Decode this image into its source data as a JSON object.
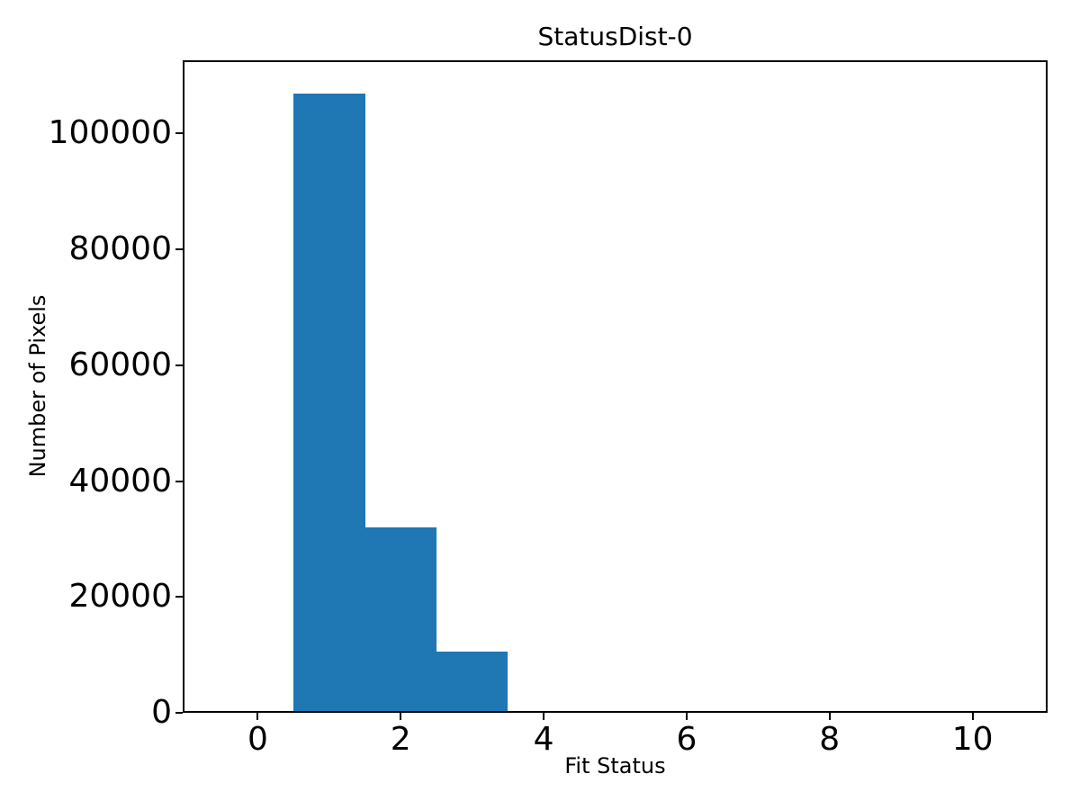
{
  "figure": {
    "background": "#ffffff"
  },
  "chart_data": {
    "type": "bar",
    "subtype": "histogram",
    "title": "StatusDist-0",
    "xlabel": "Fit Status",
    "ylabel": "Number of Pixels",
    "categories": [
      0,
      1,
      2,
      3,
      4,
      5,
      6,
      7,
      8,
      9,
      10
    ],
    "values": [
      0,
      107300,
      32300,
      10900,
      600,
      0,
      0,
      0,
      0,
      0,
      0
    ],
    "bin_width": 1,
    "xticks": [
      0,
      2,
      4,
      6,
      8,
      10
    ],
    "yticks": [
      0,
      20000,
      40000,
      60000,
      80000,
      100000
    ],
    "xlim": [
      -1.05,
      11.05
    ],
    "ylim": [
      0,
      112665
    ],
    "grid": false,
    "legend": false,
    "bar_color": "#1f77b4",
    "axis_color": "#000000",
    "background": "#ffffff"
  }
}
